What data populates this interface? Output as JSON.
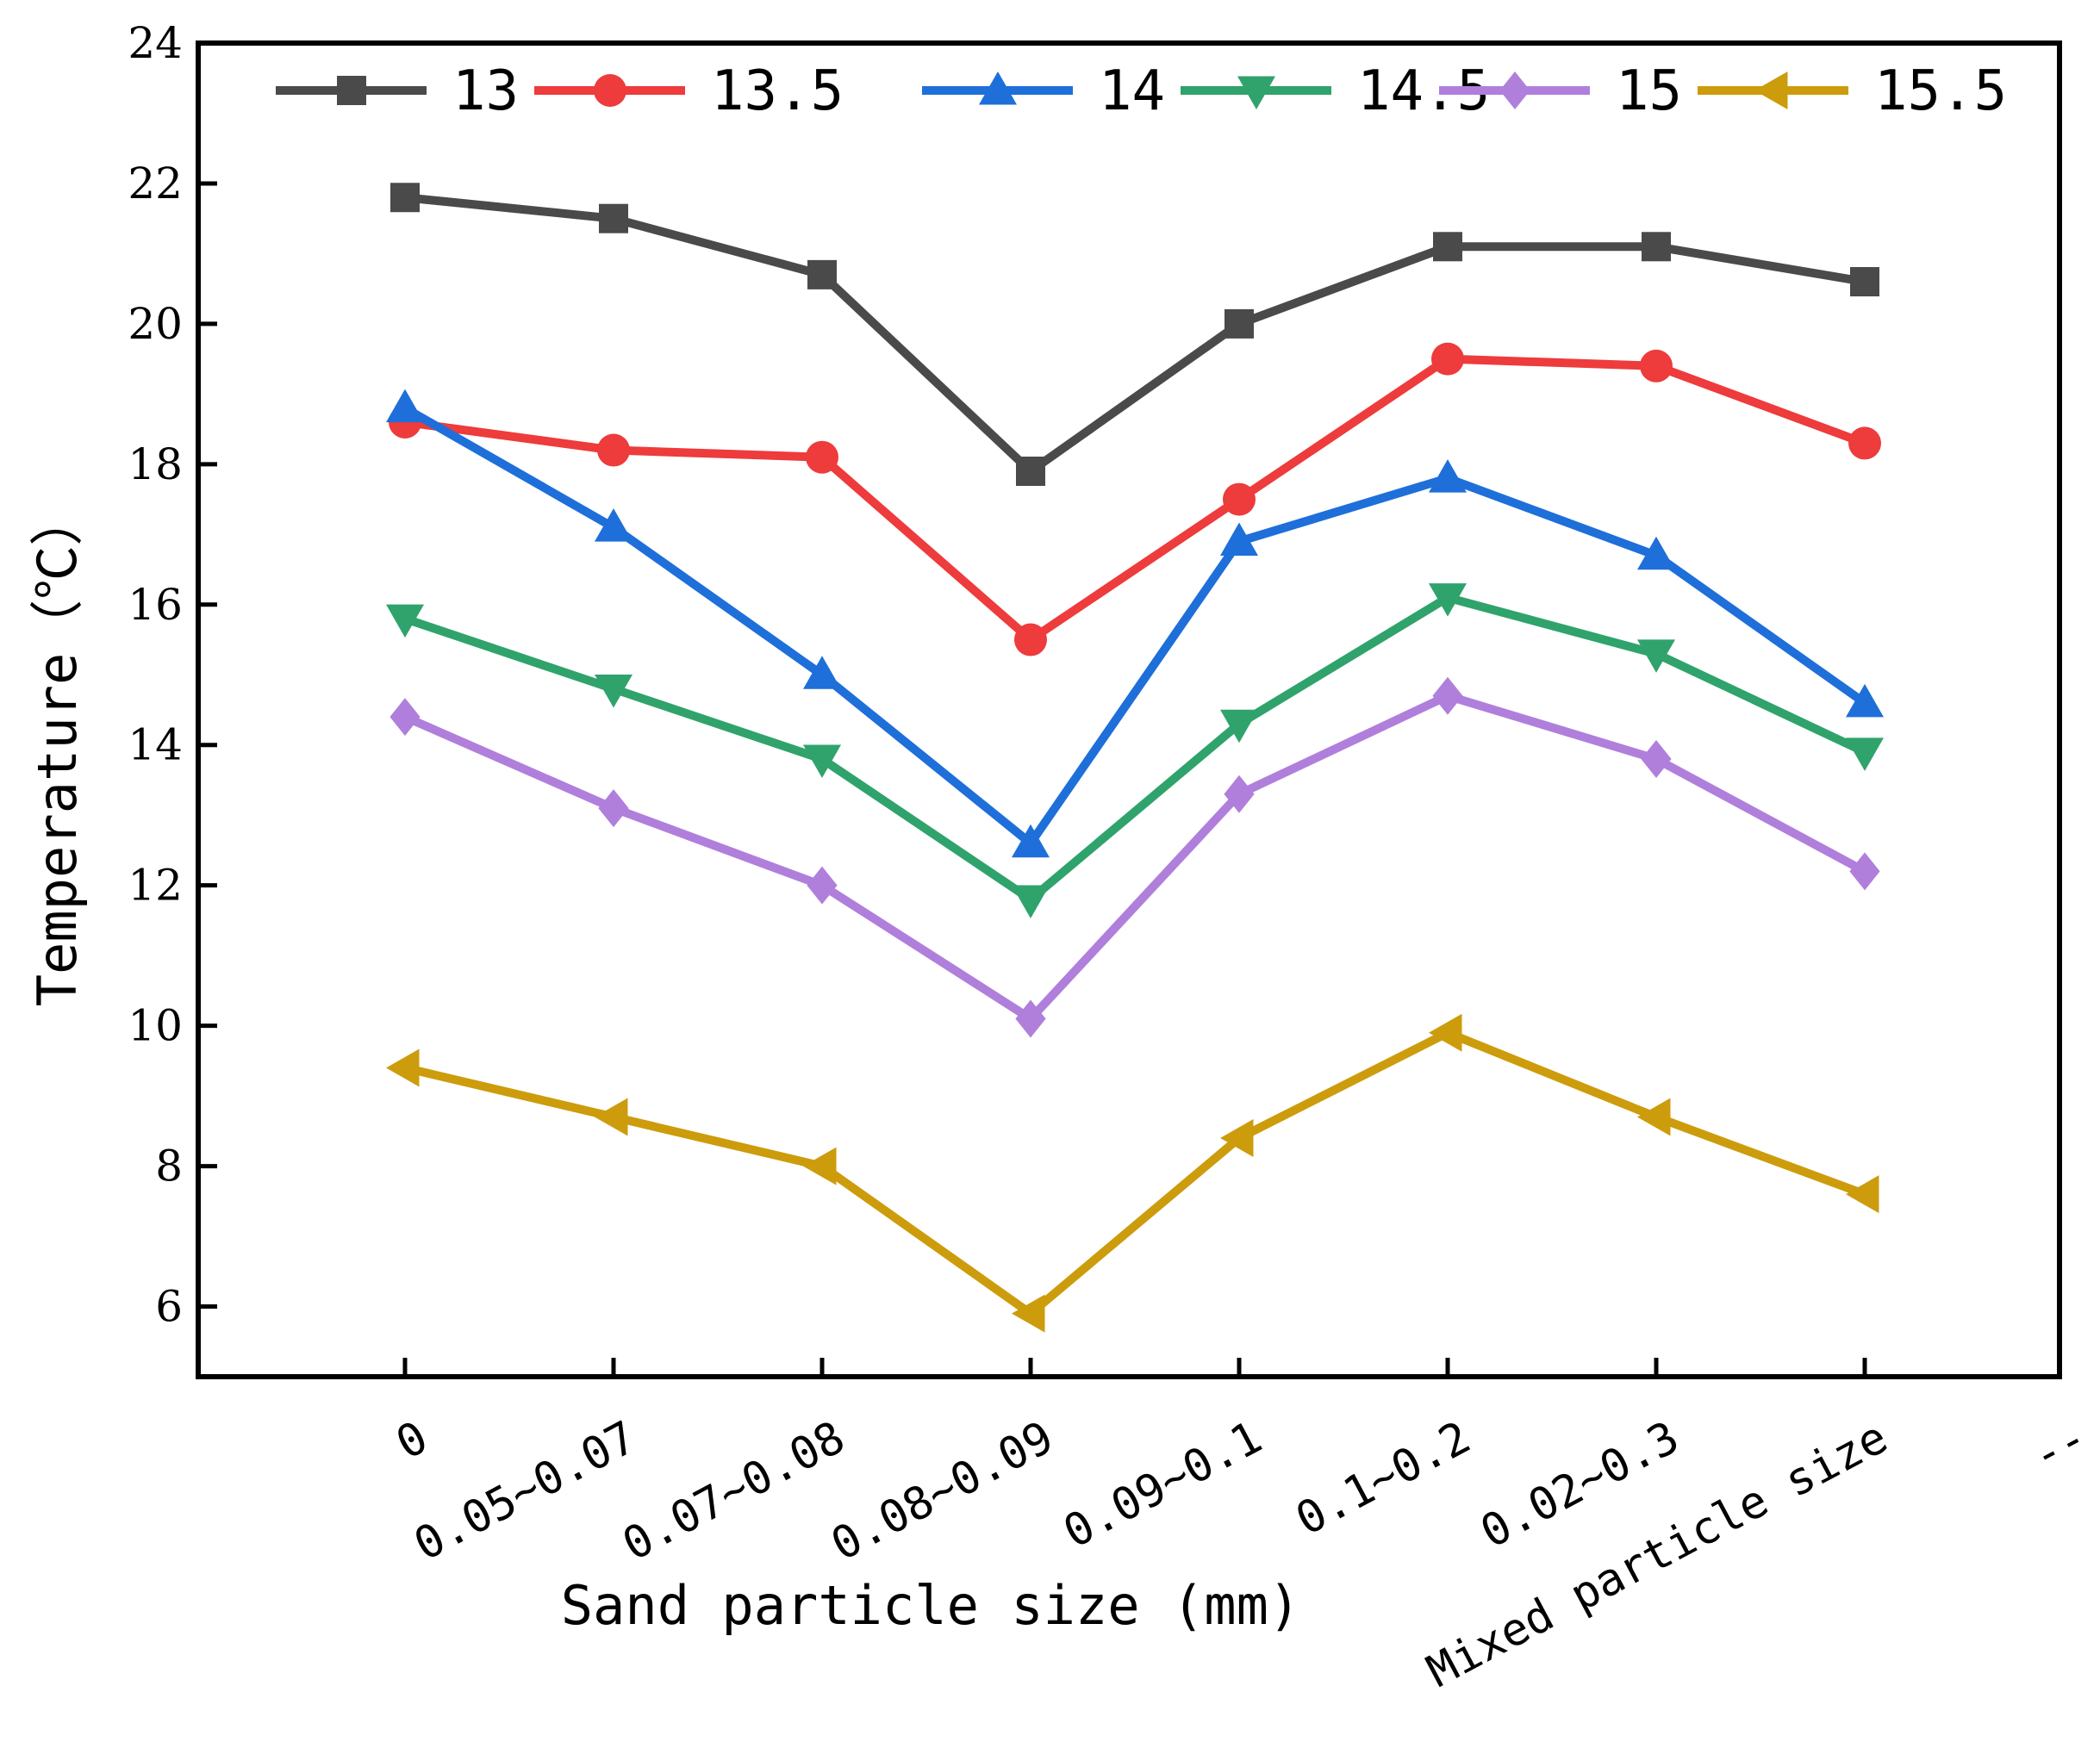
{
  "chart_data": {
    "type": "line",
    "title": "",
    "xlabel": "Sand particle size (mm)",
    "ylabel": "Temperature（℃）",
    "ylim": [
      5,
      24
    ],
    "yticks": [
      6,
      8,
      10,
      12,
      14,
      16,
      18,
      20,
      22,
      24
    ],
    "categories": [
      "0",
      "0.05~0.07",
      "0.07~0.08",
      "0.08~0.09",
      "0.09~0.1",
      "0.1~0.2",
      "0.02~0.3",
      "Mixed particle size"
    ],
    "trailing_category": "--",
    "legend_position": "top",
    "series": [
      {
        "name": "13",
        "color": "#4a4a4a",
        "marker": "square",
        "values": [
          21.8,
          21.5,
          20.7,
          17.9,
          20.0,
          21.1,
          21.1,
          20.6
        ]
      },
      {
        "name": "13.5",
        "color": "#ee3b3b",
        "marker": "circle",
        "values": [
          18.6,
          18.2,
          18.1,
          15.5,
          17.5,
          19.5,
          19.4,
          18.3
        ]
      },
      {
        "name": "14",
        "color": "#1e6fd9",
        "marker": "triangle-up",
        "values": [
          18.8,
          17.1,
          15.0,
          12.6,
          16.9,
          17.8,
          16.7,
          14.6
        ]
      },
      {
        "name": "14.5",
        "color": "#2fa36b",
        "marker": "triangle-down",
        "values": [
          15.8,
          14.8,
          13.8,
          11.8,
          14.3,
          16.1,
          15.3,
          13.9
        ]
      },
      {
        "name": "15",
        "color": "#b07fdc",
        "marker": "diamond",
        "values": [
          14.4,
          13.1,
          12.0,
          10.1,
          13.3,
          14.7,
          13.8,
          12.2
        ]
      },
      {
        "name": "15.5",
        "color": "#cc9c0c",
        "marker": "triangle-left",
        "values": [
          9.4,
          8.7,
          8.0,
          5.9,
          8.4,
          9.9,
          8.7,
          7.6
        ]
      }
    ]
  }
}
